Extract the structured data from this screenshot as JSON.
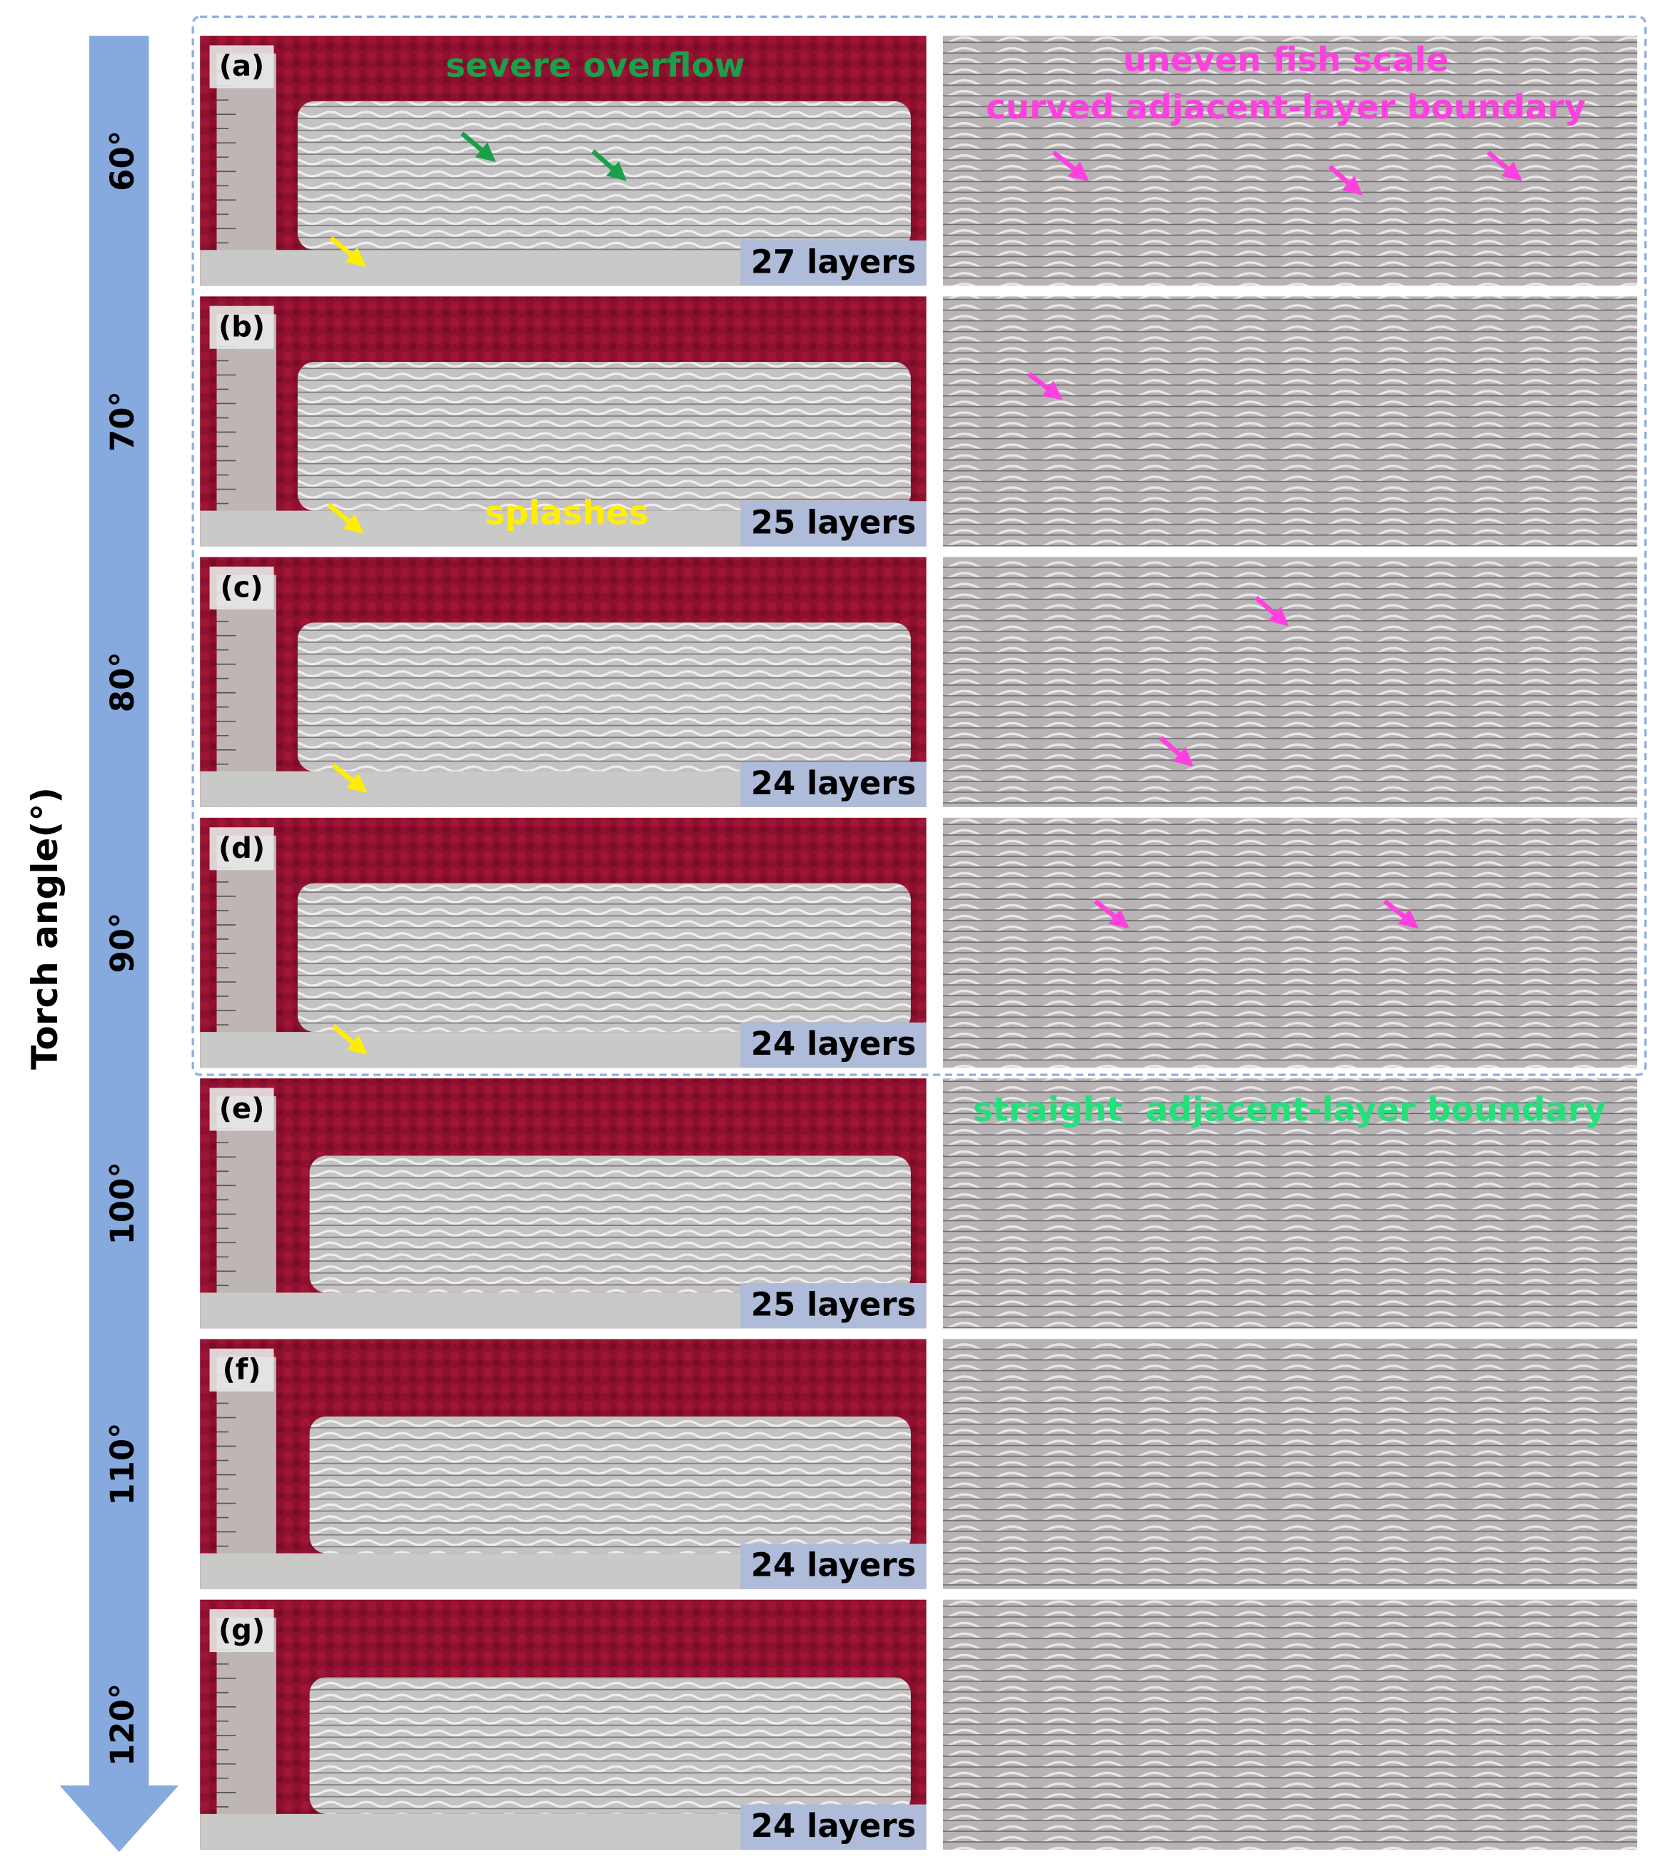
{
  "axis_label": "Torch angle(°)",
  "panels": [
    {
      "label": "(a)",
      "angle": "60°",
      "layers": "27 layers",
      "notes": [
        {
          "text": "severe overflow",
          "color": "#1aa04a"
        },
        {
          "text": "uneven fish scale",
          "color": "#ff3fe0"
        },
        {
          "text": "curved adjacent-layer boundary",
          "color": "#ff3fe0"
        }
      ]
    },
    {
      "label": "(b)",
      "angle": "70°",
      "layers": "25 layers",
      "notes": [
        {
          "text": "splashes",
          "color": "#ffee00"
        }
      ]
    },
    {
      "label": "(c)",
      "angle": "80°",
      "layers": "24 layers",
      "notes": []
    },
    {
      "label": "(d)",
      "angle": "90°",
      "layers": "24 layers",
      "notes": []
    },
    {
      "label": "(e)",
      "angle": "100°",
      "layers": "25 layers",
      "notes": [
        {
          "text": "straight  adjacent-layer boundary",
          "color": "#22e07a"
        }
      ]
    },
    {
      "label": "(f)",
      "angle": "110°",
      "layers": "24 layers",
      "notes": []
    },
    {
      "label": "(g)",
      "angle": "120°",
      "layers": "24 layers",
      "notes": []
    }
  ]
}
